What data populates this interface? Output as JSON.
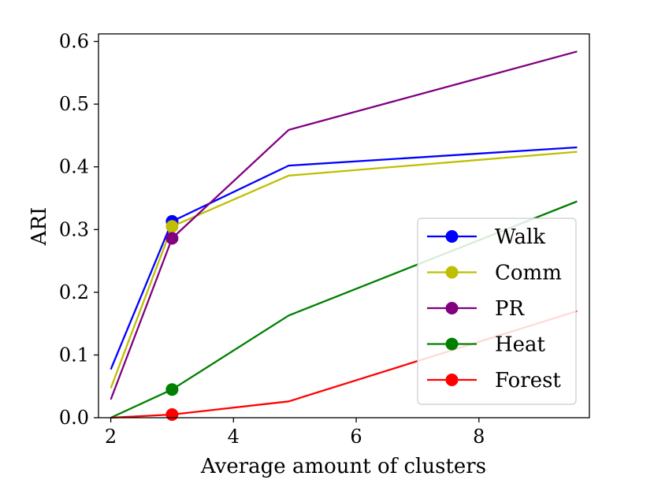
{
  "chart_data": {
    "type": "line",
    "title": "",
    "xlabel": "Average amount of clusters",
    "ylabel": "ARI",
    "xlim": [
      1.8,
      9.8
    ],
    "ylim": [
      0.0,
      0.612
    ],
    "xticks": [
      2,
      4,
      6,
      8
    ],
    "yticks": [
      0.0,
      0.1,
      0.2,
      0.3,
      0.4,
      0.5,
      0.6
    ],
    "x": [
      2,
      3,
      4.9,
      9.6
    ],
    "marker_index": 1,
    "legend_position": "lower-right",
    "series": [
      {
        "name": "Walk",
        "color": "#0000ff",
        "values": [
          0.077,
          0.313,
          0.402,
          0.431
        ]
      },
      {
        "name": "Comm",
        "color": "#bfbf00",
        "values": [
          0.047,
          0.305,
          0.386,
          0.424
        ]
      },
      {
        "name": "PR",
        "color": "#800080",
        "values": [
          0.029,
          0.286,
          0.459,
          0.584
        ]
      },
      {
        "name": "Heat",
        "color": "#008000",
        "values": [
          0.0,
          0.045,
          0.163,
          0.345
        ]
      },
      {
        "name": "Forest",
        "color": "#ff0000",
        "values": [
          0.0,
          0.005,
          0.026,
          0.17
        ]
      }
    ]
  }
}
